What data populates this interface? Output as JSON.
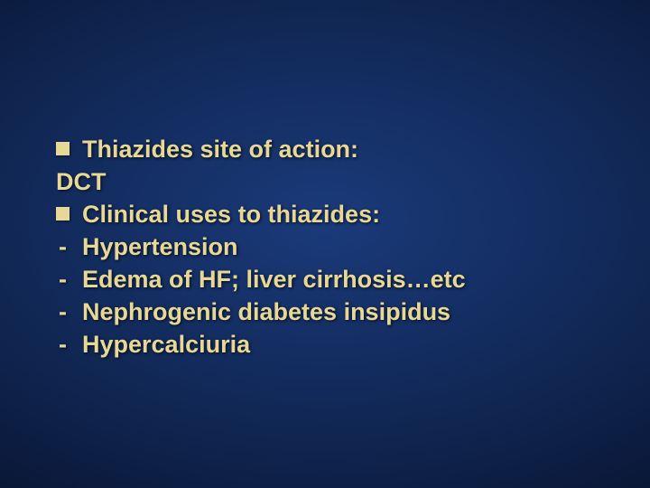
{
  "slide": {
    "background_gradient": [
      "#1a3a7a",
      "#122a5a",
      "#0a1838",
      "#020818"
    ],
    "bullet_color": "#e8d898",
    "text_color": "#e8d898",
    "font_size_pt": 20,
    "font_weight": "bold",
    "lines": [
      {
        "marker": "square",
        "text": "Thiazides site of action:"
      },
      {
        "marker": "none",
        "text": "DCT"
      },
      {
        "marker": "square",
        "text": "Clinical uses to thiazides:"
      },
      {
        "marker": "dash",
        "text": "Hypertension"
      },
      {
        "marker": "dash",
        "text": "Edema of HF; liver cirrhosis…etc"
      },
      {
        "marker": "dash",
        "text": "Nephrogenic diabetes insipidus"
      },
      {
        "marker": "dash",
        "text": "Hypercalciuria"
      }
    ]
  }
}
